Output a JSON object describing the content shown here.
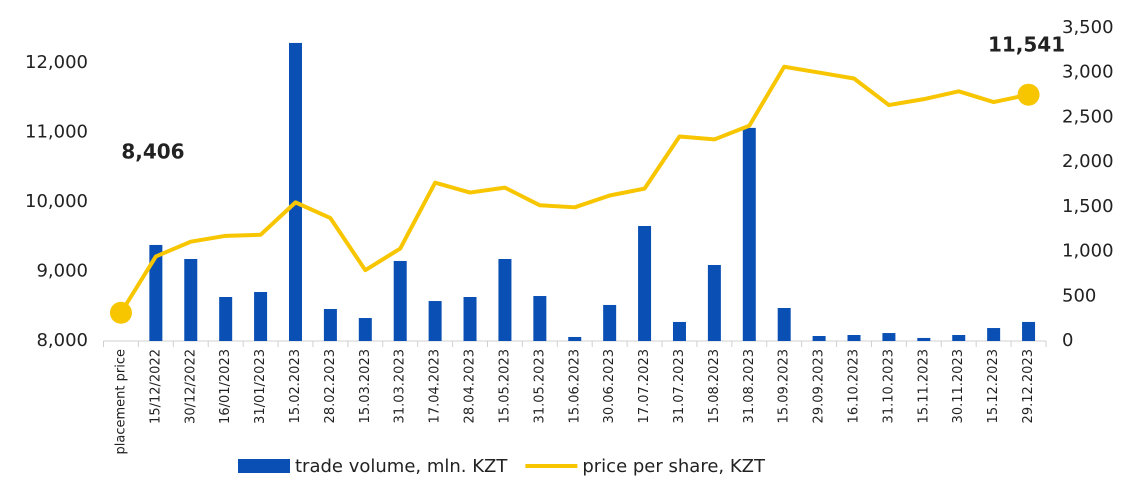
{
  "chart_data": {
    "type": "bar-line",
    "categories": [
      "placement price",
      "15/12/2022",
      "30/12/2022",
      "16/01/2023",
      "31/01/2023",
      "15.02.2023",
      "28.02.2023",
      "15.03.2023",
      "31.03.2023",
      "17.04.2023",
      "28.04.2023",
      "15.05.2023",
      "31.05.2023",
      "15.06.2023",
      "30.06.2023",
      "17.07.2023",
      "31.07.2023",
      "15.08.2023",
      "31.08.2023",
      "15.09.2023",
      "29.09.2023",
      "16.10.2023",
      "31.10.2023",
      "15.11.2023",
      "30.11.2023",
      "15.12.2023",
      "29.12.2023"
    ],
    "series": [
      {
        "name": "trade volume, mln. KZT",
        "type": "bar",
        "axis": "y2",
        "color": "#0a4fb4",
        "values": [
          null,
          1074,
          917,
          492,
          548,
          3333,
          358,
          257,
          895,
          447,
          492,
          917,
          503,
          45,
          403,
          1286,
          213,
          850,
          2383,
          369,
          56,
          67,
          89,
          34,
          67,
          145,
          213
        ]
      },
      {
        "name": "price per share, KZT",
        "type": "line",
        "axis": "y",
        "color": "#f7c600",
        "values": [
          8406,
          9216,
          9428,
          9512,
          9527,
          9993,
          9767,
          9018,
          9329,
          10276,
          10134,
          10205,
          9951,
          9922,
          10092,
          10191,
          10940,
          10898,
          11095,
          11943,
          11859,
          11774,
          11392,
          11477,
          11590,
          11435,
          11541
        ],
        "value_labels": [
          "8,406",
          null,
          null,
          null,
          null,
          null,
          null,
          null,
          null,
          null,
          null,
          null,
          null,
          null,
          null,
          null,
          null,
          null,
          null,
          null,
          null,
          null,
          null,
          null,
          null,
          null,
          "11,541"
        ]
      }
    ],
    "ylim": [
      8000,
      12500
    ],
    "yticks": [
      {
        "value": 8000,
        "label": "8,000"
      },
      {
        "value": 9000,
        "label": "9,000"
      },
      {
        "value": 10000,
        "label": "10,000"
      },
      {
        "value": 11000,
        "label": "11,000"
      },
      {
        "value": 12000,
        "label": "12,000"
      }
    ],
    "y2lim": [
      0,
      3500
    ],
    "y2ticks": [
      0,
      500,
      {
        "value": 1000,
        "label": "1,000"
      },
      {
        "value": 1500,
        "label": "1,500"
      },
      {
        "value": 2000,
        "label": "2,000"
      },
      {
        "value": 2500,
        "label": "2,500"
      },
      {
        "value": 3000,
        "label": "3,000"
      },
      {
        "value": 3500,
        "label": "3,500"
      }
    ],
    "legend": "bottom"
  }
}
